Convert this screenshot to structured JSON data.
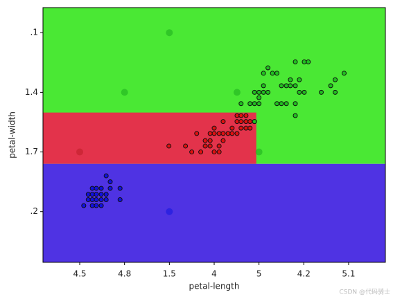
{
  "chart_data": {
    "type": "scatter",
    "xlabel": "petal-length",
    "ylabel": "petal-width",
    "watermark": "CSDN @代码骑士",
    "xlim": [
      0.18,
      7.82
    ],
    "ylim": [
      0.15,
      4.42
    ],
    "xticks": [
      {
        "value": 1,
        "label": "4.5"
      },
      {
        "value": 2,
        "label": "4.8"
      },
      {
        "value": 3,
        "label": "1.5"
      },
      {
        "value": 4,
        "label": "4"
      },
      {
        "value": 5,
        "label": "5"
      },
      {
        "value": 6,
        "label": "4.2"
      },
      {
        "value": 7,
        "label": "5.1"
      }
    ],
    "yticks": [
      {
        "value": 4,
        "label": ".1"
      },
      {
        "value": 3,
        "label": "1.4"
      },
      {
        "value": 2,
        "label": "1.7"
      },
      {
        "value": 1,
        "label": ".2"
      }
    ],
    "regions": [
      {
        "color": "#4ae834",
        "points": [
          [
            0.18,
            4.42
          ],
          [
            7.82,
            4.42
          ],
          [
            7.82,
            1.8
          ],
          [
            0.18,
            1.8
          ]
        ]
      },
      {
        "color": "#e3334b",
        "points": [
          [
            0.18,
            2.66
          ],
          [
            4.94,
            2.66
          ],
          [
            4.94,
            1.8
          ],
          [
            0.18,
            1.8
          ]
        ]
      },
      {
        "color": "#4f33e3",
        "points": [
          [
            0.18,
            1.8
          ],
          [
            7.82,
            1.8
          ],
          [
            7.82,
            0.15
          ],
          [
            0.18,
            0.15
          ]
        ]
      }
    ],
    "series": [
      {
        "color": "#1010e0",
        "size": 3,
        "x": [
          1.09,
          1.19,
          1.28,
          1.37,
          1.48,
          1.59,
          1.9,
          1.19,
          1.28,
          1.37,
          1.48,
          1.59,
          1.28,
          1.37,
          1.48,
          1.68,
          1.9,
          1.28,
          1.37,
          1.48,
          1.68,
          1.59
        ],
        "y": [
          1.1,
          1.2,
          1.2,
          1.2,
          1.2,
          1.2,
          1.2,
          1.29,
          1.29,
          1.29,
          1.29,
          1.29,
          1.39,
          1.39,
          1.39,
          1.39,
          1.39,
          1.1,
          1.1,
          1.1,
          1.5,
          1.6
        ]
      },
      {
        "color": "#e01010",
        "size": 3,
        "x": [
          2.99,
          3.5,
          3.7,
          4.0,
          4.11,
          3.8,
          3.91,
          3.61,
          3.8,
          3.91,
          4.0,
          4.11,
          4.2,
          4.31,
          4.4,
          4.51,
          3.91,
          4.0,
          4.2,
          4.4,
          4.51,
          4.6,
          4.71,
          4.8,
          4.6,
          4.71,
          4.51,
          4.6,
          4.71,
          4.2,
          4.11,
          3.36,
          4.8,
          4.9
        ],
        "y": [
          2.1,
          2.0,
          2.0,
          2.0,
          2.0,
          2.1,
          2.1,
          2.31,
          2.19,
          2.19,
          2.31,
          2.31,
          2.31,
          2.31,
          2.31,
          2.31,
          2.31,
          2.4,
          2.51,
          2.4,
          2.51,
          2.4,
          2.4,
          2.4,
          2.51,
          2.51,
          2.61,
          2.61,
          2.61,
          2.19,
          2.1,
          2.1,
          2.51,
          2.51
        ]
      },
      {
        "color": "#20c020",
        "size": 3,
        "x": [
          4.8,
          4.9,
          5.0,
          4.6,
          4.9,
          5.0,
          5.1,
          5.2,
          5.0,
          5.1,
          5.1,
          5.3,
          5.4,
          5.2,
          5.5,
          5.61,
          5.7,
          5.81,
          5.5,
          5.61,
          5.7,
          5.81,
          5.9,
          6.01,
          6.1,
          5.9,
          6.01,
          5.81,
          6.39,
          6.6,
          6.7,
          6.7,
          6.9,
          5.81,
          5.4,
          4.9
        ],
        "y": [
          2.81,
          2.81,
          2.81,
          2.81,
          3.0,
          3.0,
          3.0,
          3.0,
          2.91,
          3.32,
          3.11,
          3.32,
          3.32,
          3.41,
          3.11,
          3.11,
          3.11,
          3.11,
          2.81,
          2.81,
          3.21,
          2.81,
          3.21,
          3.51,
          3.51,
          3.0,
          3.0,
          2.61,
          3.0,
          3.11,
          3.21,
          3.0,
          3.32,
          3.51,
          2.81,
          2.51
        ]
      },
      {
        "color": "#20b020",
        "size": 5,
        "opacity": 0.6,
        "x": [
          3.0,
          2.0,
          4.51,
          5.0
        ],
        "y": [
          4.0,
          3.0,
          3.0,
          2.0
        ]
      },
      {
        "color": "#c0202a",
        "size": 5,
        "opacity": 0.6,
        "x": [
          1.0
        ],
        "y": [
          2.0
        ]
      },
      {
        "color": "#1818e0",
        "size": 5,
        "opacity": 0.6,
        "x": [
          3.0
        ],
        "y": [
          1.0
        ]
      }
    ]
  }
}
